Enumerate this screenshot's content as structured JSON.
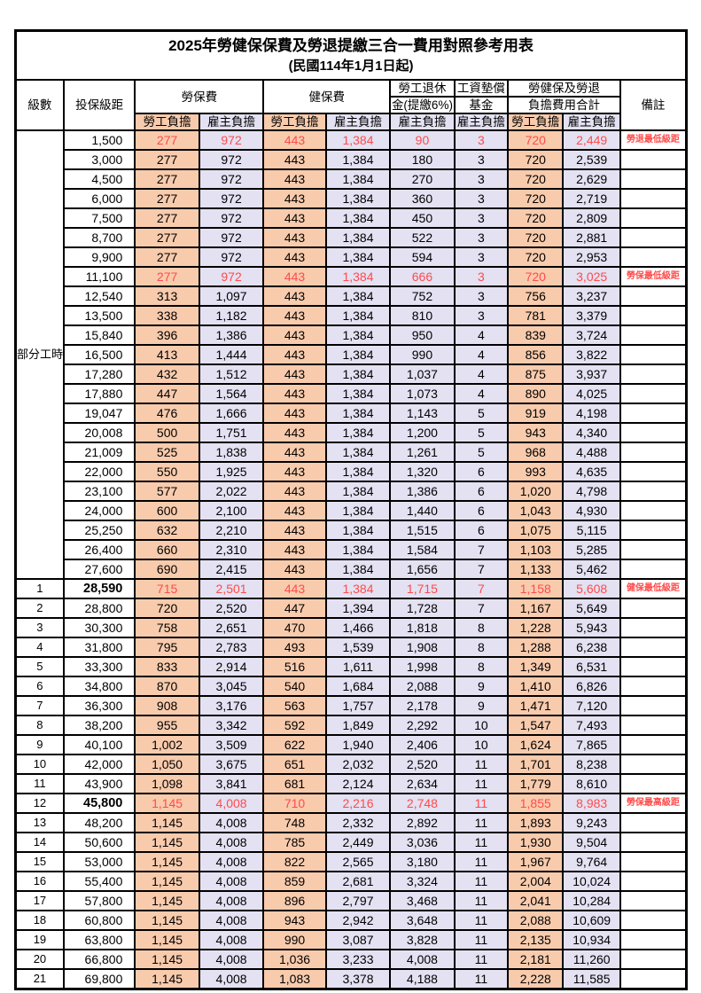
{
  "title": "2025年勞健保保費及勞退提繳三合一費用對照參考用表",
  "subtitle": "(民國114年1月1日起)",
  "colors": {
    "worker_bg": "#F8CBAD",
    "employer_bg": "#E3E1F2",
    "highlight_text": "#FF4B4B",
    "border": "#000000"
  },
  "header": {
    "level": "級數",
    "bracket": "投保級距",
    "labor_insurance": "勞保費",
    "health_insurance": "健保費",
    "pension_line1": "勞工退休",
    "pension_line2": "金(提繳6%)",
    "wage_fund_line1": "工資墊償",
    "wage_fund_line2": "基金",
    "total_line1": "勞健保及勞退",
    "total_line2": "負擔費用合計",
    "remarks": "備註",
    "worker": "勞工負擔",
    "employer": "雇主負擔"
  },
  "part_time_label": "部分工時",
  "part_time_rowspan": 23,
  "rows": [
    {
      "level": "",
      "bracket": "1,500",
      "values": [
        "277",
        "972",
        "443",
        "1,384",
        "90",
        "3",
        "720",
        "2,449"
      ],
      "remark": "勞退最低級距",
      "red": true,
      "bold_bracket": false
    },
    {
      "level": "",
      "bracket": "3,000",
      "values": [
        "277",
        "972",
        "443",
        "1,384",
        "180",
        "3",
        "720",
        "2,539"
      ],
      "remark": "",
      "red": false,
      "bold_bracket": false
    },
    {
      "level": "",
      "bracket": "4,500",
      "values": [
        "277",
        "972",
        "443",
        "1,384",
        "270",
        "3",
        "720",
        "2,629"
      ],
      "remark": "",
      "red": false,
      "bold_bracket": false
    },
    {
      "level": "",
      "bracket": "6,000",
      "values": [
        "277",
        "972",
        "443",
        "1,384",
        "360",
        "3",
        "720",
        "2,719"
      ],
      "remark": "",
      "red": false,
      "bold_bracket": false
    },
    {
      "level": "",
      "bracket": "7,500",
      "values": [
        "277",
        "972",
        "443",
        "1,384",
        "450",
        "3",
        "720",
        "2,809"
      ],
      "remark": "",
      "red": false,
      "bold_bracket": false
    },
    {
      "level": "",
      "bracket": "8,700",
      "values": [
        "277",
        "972",
        "443",
        "1,384",
        "522",
        "3",
        "720",
        "2,881"
      ],
      "remark": "",
      "red": false,
      "bold_bracket": false
    },
    {
      "level": "",
      "bracket": "9,900",
      "values": [
        "277",
        "972",
        "443",
        "1,384",
        "594",
        "3",
        "720",
        "2,953"
      ],
      "remark": "",
      "red": false,
      "bold_bracket": false
    },
    {
      "level": "",
      "bracket": "11,100",
      "values": [
        "277",
        "972",
        "443",
        "1,384",
        "666",
        "3",
        "720",
        "3,025"
      ],
      "remark": "勞保最低級距",
      "red": true,
      "bold_bracket": false
    },
    {
      "level": "",
      "bracket": "12,540",
      "values": [
        "313",
        "1,097",
        "443",
        "1,384",
        "752",
        "3",
        "756",
        "3,237"
      ],
      "remark": "",
      "red": false,
      "bold_bracket": false
    },
    {
      "level": "",
      "bracket": "13,500",
      "values": [
        "338",
        "1,182",
        "443",
        "1,384",
        "810",
        "3",
        "781",
        "3,379"
      ],
      "remark": "",
      "red": false,
      "bold_bracket": false
    },
    {
      "level": "",
      "bracket": "15,840",
      "values": [
        "396",
        "1,386",
        "443",
        "1,384",
        "950",
        "4",
        "839",
        "3,724"
      ],
      "remark": "",
      "red": false,
      "bold_bracket": false
    },
    {
      "level": "",
      "bracket": "16,500",
      "values": [
        "413",
        "1,444",
        "443",
        "1,384",
        "990",
        "4",
        "856",
        "3,822"
      ],
      "remark": "",
      "red": false,
      "bold_bracket": false
    },
    {
      "level": "",
      "bracket": "17,280",
      "values": [
        "432",
        "1,512",
        "443",
        "1,384",
        "1,037",
        "4",
        "875",
        "3,937"
      ],
      "remark": "",
      "red": false,
      "bold_bracket": false
    },
    {
      "level": "",
      "bracket": "17,880",
      "values": [
        "447",
        "1,564",
        "443",
        "1,384",
        "1,073",
        "4",
        "890",
        "4,025"
      ],
      "remark": "",
      "red": false,
      "bold_bracket": false
    },
    {
      "level": "",
      "bracket": "19,047",
      "values": [
        "476",
        "1,666",
        "443",
        "1,384",
        "1,143",
        "5",
        "919",
        "4,198"
      ],
      "remark": "",
      "red": false,
      "bold_bracket": false
    },
    {
      "level": "",
      "bracket": "20,008",
      "values": [
        "500",
        "1,751",
        "443",
        "1,384",
        "1,200",
        "5",
        "943",
        "4,340"
      ],
      "remark": "",
      "red": false,
      "bold_bracket": false
    },
    {
      "level": "",
      "bracket": "21,009",
      "values": [
        "525",
        "1,838",
        "443",
        "1,384",
        "1,261",
        "5",
        "968",
        "4,488"
      ],
      "remark": "",
      "red": false,
      "bold_bracket": false
    },
    {
      "level": "",
      "bracket": "22,000",
      "values": [
        "550",
        "1,925",
        "443",
        "1,384",
        "1,320",
        "6",
        "993",
        "4,635"
      ],
      "remark": "",
      "red": false,
      "bold_bracket": false
    },
    {
      "level": "",
      "bracket": "23,100",
      "values": [
        "577",
        "2,022",
        "443",
        "1,384",
        "1,386",
        "6",
        "1,020",
        "4,798"
      ],
      "remark": "",
      "red": false,
      "bold_bracket": false
    },
    {
      "level": "",
      "bracket": "24,000",
      "values": [
        "600",
        "2,100",
        "443",
        "1,384",
        "1,440",
        "6",
        "1,043",
        "4,930"
      ],
      "remark": "",
      "red": false,
      "bold_bracket": false
    },
    {
      "level": "",
      "bracket": "25,250",
      "values": [
        "632",
        "2,210",
        "443",
        "1,384",
        "1,515",
        "6",
        "1,075",
        "5,115"
      ],
      "remark": "",
      "red": false,
      "bold_bracket": false
    },
    {
      "level": "",
      "bracket": "26,400",
      "values": [
        "660",
        "2,310",
        "443",
        "1,384",
        "1,584",
        "7",
        "1,103",
        "5,285"
      ],
      "remark": "",
      "red": false,
      "bold_bracket": false
    },
    {
      "level": "",
      "bracket": "27,600",
      "values": [
        "690",
        "2,415",
        "443",
        "1,384",
        "1,656",
        "7",
        "1,133",
        "5,462"
      ],
      "remark": "",
      "red": false,
      "bold_bracket": false
    },
    {
      "level": "1",
      "bracket": "28,590",
      "values": [
        "715",
        "2,501",
        "443",
        "1,384",
        "1,715",
        "7",
        "1,158",
        "5,608"
      ],
      "remark": "健保最低級距",
      "red": true,
      "bold_bracket": true
    },
    {
      "level": "2",
      "bracket": "28,800",
      "values": [
        "720",
        "2,520",
        "447",
        "1,394",
        "1,728",
        "7",
        "1,167",
        "5,649"
      ],
      "remark": "",
      "red": false,
      "bold_bracket": false
    },
    {
      "level": "3",
      "bracket": "30,300",
      "values": [
        "758",
        "2,651",
        "470",
        "1,466",
        "1,818",
        "8",
        "1,228",
        "5,943"
      ],
      "remark": "",
      "red": false,
      "bold_bracket": false
    },
    {
      "level": "4",
      "bracket": "31,800",
      "values": [
        "795",
        "2,783",
        "493",
        "1,539",
        "1,908",
        "8",
        "1,288",
        "6,238"
      ],
      "remark": "",
      "red": false,
      "bold_bracket": false
    },
    {
      "level": "5",
      "bracket": "33,300",
      "values": [
        "833",
        "2,914",
        "516",
        "1,611",
        "1,998",
        "8",
        "1,349",
        "6,531"
      ],
      "remark": "",
      "red": false,
      "bold_bracket": false
    },
    {
      "level": "6",
      "bracket": "34,800",
      "values": [
        "870",
        "3,045",
        "540",
        "1,684",
        "2,088",
        "9",
        "1,410",
        "6,826"
      ],
      "remark": "",
      "red": false,
      "bold_bracket": false
    },
    {
      "level": "7",
      "bracket": "36,300",
      "values": [
        "908",
        "3,176",
        "563",
        "1,757",
        "2,178",
        "9",
        "1,471",
        "7,120"
      ],
      "remark": "",
      "red": false,
      "bold_bracket": false
    },
    {
      "level": "8",
      "bracket": "38,200",
      "values": [
        "955",
        "3,342",
        "592",
        "1,849",
        "2,292",
        "10",
        "1,547",
        "7,493"
      ],
      "remark": "",
      "red": false,
      "bold_bracket": false
    },
    {
      "level": "9",
      "bracket": "40,100",
      "values": [
        "1,002",
        "3,509",
        "622",
        "1,940",
        "2,406",
        "10",
        "1,624",
        "7,865"
      ],
      "remark": "",
      "red": false,
      "bold_bracket": false
    },
    {
      "level": "10",
      "bracket": "42,000",
      "values": [
        "1,050",
        "3,675",
        "651",
        "2,032",
        "2,520",
        "11",
        "1,701",
        "8,238"
      ],
      "remark": "",
      "red": false,
      "bold_bracket": false
    },
    {
      "level": "11",
      "bracket": "43,900",
      "values": [
        "1,098",
        "3,841",
        "681",
        "2,124",
        "2,634",
        "11",
        "1,779",
        "8,610"
      ],
      "remark": "",
      "red": false,
      "bold_bracket": false
    },
    {
      "level": "12",
      "bracket": "45,800",
      "values": [
        "1,145",
        "4,008",
        "710",
        "2,216",
        "2,748",
        "11",
        "1,855",
        "8,983"
      ],
      "remark": "勞保最高級距",
      "red": true,
      "bold_bracket": true
    },
    {
      "level": "13",
      "bracket": "48,200",
      "values": [
        "1,145",
        "4,008",
        "748",
        "2,332",
        "2,892",
        "11",
        "1,893",
        "9,243"
      ],
      "remark": "",
      "red": false,
      "bold_bracket": false
    },
    {
      "level": "14",
      "bracket": "50,600",
      "values": [
        "1,145",
        "4,008",
        "785",
        "2,449",
        "3,036",
        "11",
        "1,930",
        "9,504"
      ],
      "remark": "",
      "red": false,
      "bold_bracket": false
    },
    {
      "level": "15",
      "bracket": "53,000",
      "values": [
        "1,145",
        "4,008",
        "822",
        "2,565",
        "3,180",
        "11",
        "1,967",
        "9,764"
      ],
      "remark": "",
      "red": false,
      "bold_bracket": false
    },
    {
      "level": "16",
      "bracket": "55,400",
      "values": [
        "1,145",
        "4,008",
        "859",
        "2,681",
        "3,324",
        "11",
        "2,004",
        "10,024"
      ],
      "remark": "",
      "red": false,
      "bold_bracket": false
    },
    {
      "level": "17",
      "bracket": "57,800",
      "values": [
        "1,145",
        "4,008",
        "896",
        "2,797",
        "3,468",
        "11",
        "2,041",
        "10,284"
      ],
      "remark": "",
      "red": false,
      "bold_bracket": false
    },
    {
      "level": "18",
      "bracket": "60,800",
      "values": [
        "1,145",
        "4,008",
        "943",
        "2,942",
        "3,648",
        "11",
        "2,088",
        "10,609"
      ],
      "remark": "",
      "red": false,
      "bold_bracket": false
    },
    {
      "level": "19",
      "bracket": "63,800",
      "values": [
        "1,145",
        "4,008",
        "990",
        "3,087",
        "3,828",
        "11",
        "2,135",
        "10,934"
      ],
      "remark": "",
      "red": false,
      "bold_bracket": false
    },
    {
      "level": "20",
      "bracket": "66,800",
      "values": [
        "1,145",
        "4,008",
        "1,036",
        "3,233",
        "4,008",
        "11",
        "2,181",
        "11,260"
      ],
      "remark": "",
      "red": false,
      "bold_bracket": false
    },
    {
      "level": "21",
      "bracket": "69,800",
      "values": [
        "1,145",
        "4,008",
        "1,083",
        "3,378",
        "4,188",
        "11",
        "2,228",
        "11,585"
      ],
      "remark": "",
      "red": false,
      "bold_bracket": false
    }
  ]
}
